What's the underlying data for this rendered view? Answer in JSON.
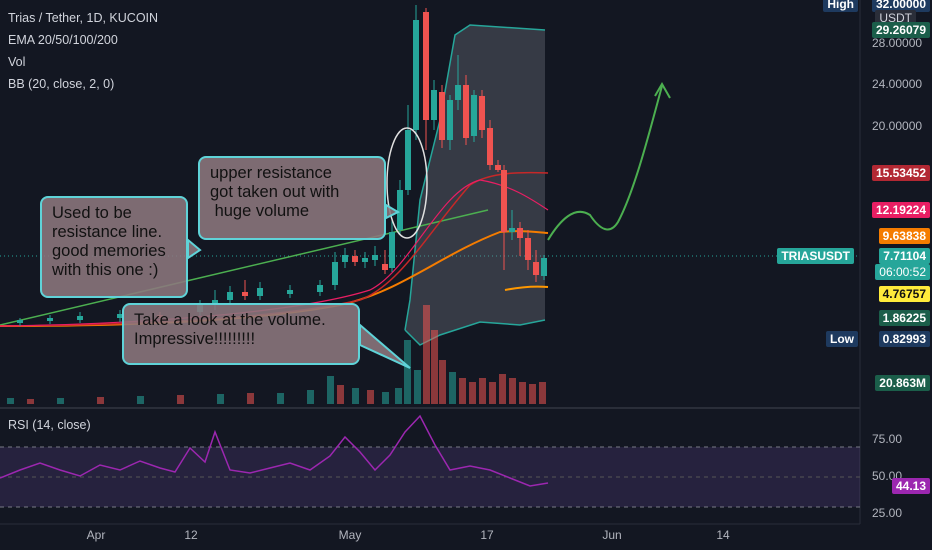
{
  "legend": {
    "symbol": "Trias / Tether, 1D, KUCOIN",
    "ema": "EMA 20/50/100/200",
    "vol": "Vol",
    "bb": "BB (20, close, 2, 0)"
  },
  "rsi": {
    "label": "RSI (14, close)",
    "value": "44.13",
    "ticks": [
      "75.00",
      "50.00",
      "25.00"
    ]
  },
  "price_axis": {
    "quote": "USDT",
    "high_label": "High",
    "high_value": "32.00000",
    "low_label": "Low",
    "low_value": "0.82993",
    "ticks": [
      "28.00000",
      "24.00000",
      "20.00000",
      "15.53452"
    ],
    "markers": {
      "bb_upper": "29.26079",
      "ema_red": "15.53452",
      "ema_pink": "12.19224",
      "ema_orange": "9.63838",
      "ema_low": "4.76757",
      "bb_lower": "1.86225",
      "volume": "20.863M"
    },
    "current": {
      "symbol": "TRIASUSDT",
      "price": "7.71104",
      "countdown": "06:00:52"
    }
  },
  "time_axis": [
    "Apr",
    "12",
    "May",
    "17",
    "Jun",
    "14"
  ],
  "notes": {
    "n1": "upper resistance\ngot taken out with\n huge volume",
    "n2": "Used to be\nresistance line.\ngood memories\nwith this one :)",
    "n3": "Take a look at the volume.\nImpressive!!!!!!!!!"
  },
  "colors": {
    "up": "#26a69a",
    "down": "#ef5350",
    "bg": "#131722",
    "ema_red": "#f23645",
    "ema_orange": "#f57c00",
    "bb": "#26a69a",
    "rsi": "#9c27b0",
    "arrow": "#4caf50"
  }
}
